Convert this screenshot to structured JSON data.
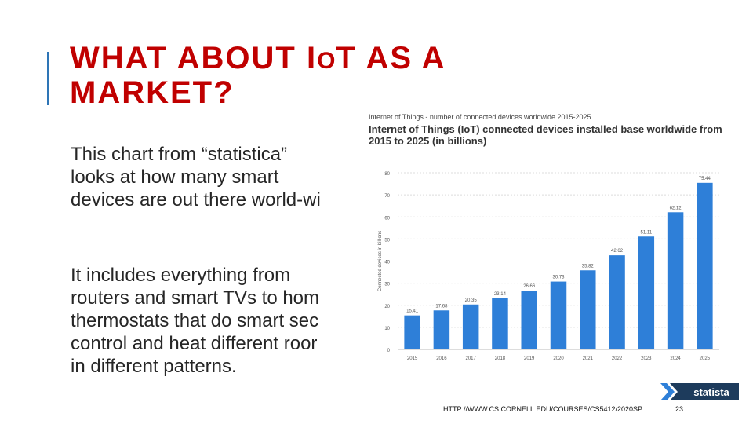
{
  "slide": {
    "title_line1_a": "WHAT ABOUT I",
    "title_line1_o": "O",
    "title_line1_b": "T AS A",
    "title_line2": "MARKET?",
    "para1_lines": [
      "This chart from “statistica”",
      "looks at how many smart",
      "devices are out there world-wi"
    ],
    "para2_lines": [
      "It includes everything from",
      "routers and smart TVs to hom",
      "thermostats that do smart sec",
      "control and heat different roor",
      "in different patterns."
    ],
    "footer_url": "HTTP://WWW.CS.CORNELL.EDU/COURSES/CS5412/2020SP",
    "page_number": "23",
    "accent_color": "#2e75b6",
    "title_color": "#c00000"
  },
  "chart_data": {
    "type": "bar",
    "caption": "Internet of Things - number of connected devices worldwide 2015-2025",
    "title_lines": [
      "Internet of Things (IoT) connected devices installed base worldwide from",
      "2015 to 2025 (in billions)"
    ],
    "ylabel": "Connected devices in billions",
    "categories": [
      "2015",
      "2016",
      "2017",
      "2018",
      "2019",
      "2020",
      "2021",
      "2022",
      "2023",
      "2024",
      "2025"
    ],
    "values": [
      15.41,
      17.68,
      20.35,
      23.14,
      26.66,
      30.73,
      35.82,
      42.62,
      51.11,
      62.12,
      75.44
    ],
    "value_labels": [
      "15.41",
      "17.68",
      "20.35",
      "23.14",
      "26.66",
      "30.73",
      "35.82",
      "42.62",
      "51.11",
      "62.12",
      "75.44"
    ],
    "yticks": [
      0,
      10,
      20,
      30,
      40,
      50,
      60,
      70,
      80
    ],
    "ylim": [
      0,
      80
    ],
    "grid": true,
    "bar_color": "#2e7fd8",
    "logo_text": "statista"
  }
}
